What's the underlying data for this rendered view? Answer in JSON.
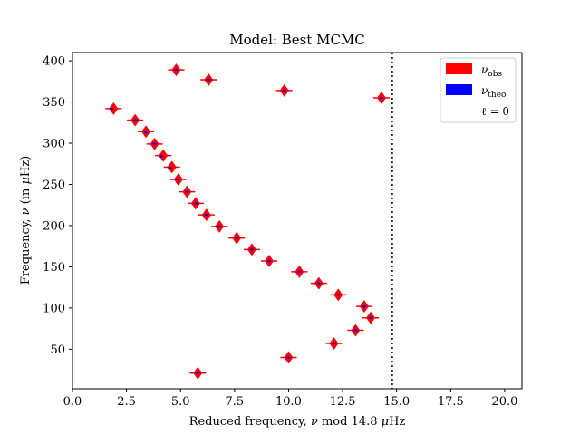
{
  "chart_data": {
    "type": "scatter",
    "title": "Model: Best MCMC",
    "xlabel_pre": "Reduced frequency, ",
    "xlabel_nu": "ν",
    "xlabel_post": " mod 14.8 ",
    "xlabel_unit_mu": "μ",
    "xlabel_unit_hz": "Hz",
    "ylabel_pre": "Frequency, ",
    "ylabel_nu": "ν",
    "ylabel_post": " (in ",
    "ylabel_unit_mu": "μ",
    "ylabel_unit_hz": "Hz)",
    "xlim": [
      0,
      20.8
    ],
    "ylim": [
      2,
      410
    ],
    "xticks": [
      0,
      2.5,
      5,
      7.5,
      10,
      12.5,
      15,
      17.5,
      20
    ],
    "xtick_labels": [
      "0.0",
      "2.5",
      "5.0",
      "7.5",
      "10.0",
      "12.5",
      "15.0",
      "17.5",
      "20.0"
    ],
    "yticks": [
      50,
      100,
      150,
      200,
      250,
      300,
      350,
      400
    ],
    "ytick_labels": [
      "50",
      "100",
      "150",
      "200",
      "250",
      "300",
      "350",
      "400"
    ],
    "vline_x": 14.8,
    "grid": false,
    "legend_position": "top-right",
    "legend": {
      "obs_symbol": "ν",
      "obs_sub": "obs",
      "theo_symbol": "ν",
      "theo_sub": "theo",
      "l_label": "ℓ = 0"
    },
    "colors": {
      "obs": "#ff0000",
      "theo": "#0000ff",
      "axis": "#000000"
    },
    "series": [
      {
        "name": "ν_obs",
        "points": [
          [
            5.8,
            21
          ],
          [
            10.0,
            40
          ],
          [
            12.1,
            57
          ],
          [
            13.1,
            73
          ],
          [
            13.8,
            88
          ],
          [
            13.5,
            102
          ],
          [
            12.3,
            116
          ],
          [
            11.4,
            130
          ],
          [
            10.5,
            144
          ],
          [
            9.1,
            157
          ],
          [
            8.3,
            171
          ],
          [
            7.6,
            185
          ],
          [
            6.8,
            199
          ],
          [
            6.2,
            213
          ],
          [
            5.7,
            227
          ],
          [
            5.3,
            241
          ],
          [
            4.9,
            256
          ],
          [
            4.6,
            271
          ],
          [
            4.2,
            285
          ],
          [
            3.8,
            299
          ],
          [
            3.4,
            314
          ],
          [
            2.9,
            328
          ],
          [
            1.9,
            342
          ],
          [
            14.3,
            355
          ],
          [
            9.8,
            364
          ],
          [
            6.3,
            377
          ],
          [
            4.8,
            389
          ]
        ]
      },
      {
        "name": "ν_theo",
        "points": [
          [
            5.8,
            21
          ],
          [
            10.0,
            40
          ],
          [
            12.1,
            57
          ],
          [
            13.1,
            73
          ],
          [
            13.8,
            88
          ],
          [
            13.5,
            102
          ],
          [
            12.3,
            116
          ],
          [
            11.4,
            130
          ],
          [
            10.5,
            144
          ],
          [
            9.1,
            157
          ],
          [
            8.3,
            171
          ],
          [
            7.6,
            185
          ],
          [
            6.8,
            199
          ],
          [
            6.2,
            213
          ],
          [
            5.7,
            227
          ],
          [
            5.3,
            241
          ],
          [
            4.9,
            256
          ],
          [
            4.5,
            270
          ],
          [
            4.1,
            284
          ],
          [
            3.8,
            299
          ],
          [
            3.4,
            313
          ],
          [
            2.9,
            328
          ],
          [
            1.8,
            342
          ],
          [
            14.3,
            355
          ],
          [
            9.8,
            364
          ],
          [
            6.3,
            377
          ],
          [
            4.8,
            389
          ]
        ]
      }
    ]
  }
}
